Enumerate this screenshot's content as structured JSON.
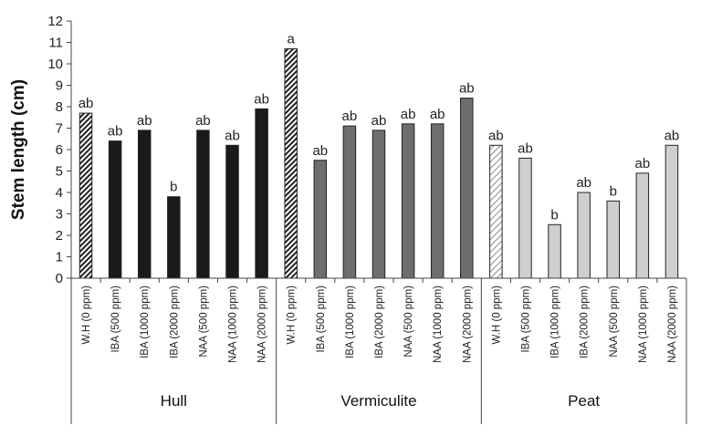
{
  "chart_data": {
    "type": "bar",
    "ylabel": "Stem length (cm)",
    "ylim": [
      0,
      12
    ],
    "yticks": [
      0,
      1,
      2,
      3,
      4,
      5,
      6,
      7,
      8,
      9,
      10,
      11,
      12
    ],
    "grid": false,
    "categories": [
      "W.H (0 ppm)",
      "IBA (500 ppm)",
      "IBA (1000 ppm)",
      "IBA (2000 ppm)",
      "NAA (500 ppm)",
      "NAA (1000 ppm)",
      "NAA (2000 ppm)"
    ],
    "groups": [
      {
        "name": "Hull",
        "values": [
          7.7,
          6.4,
          6.9,
          3.8,
          6.9,
          6.2,
          7.9
        ],
        "labels": [
          "ab",
          "ab",
          "ab",
          "b",
          "ab",
          "ab",
          "ab"
        ],
        "color": "#1a1a1a",
        "control_pattern": "dense-hatch"
      },
      {
        "name": "Vermiculite",
        "values": [
          10.7,
          5.5,
          7.1,
          6.9,
          7.2,
          7.2,
          8.4
        ],
        "labels": [
          "a",
          "ab",
          "ab",
          "ab",
          "ab",
          "ab",
          "ab"
        ],
        "color": "#6e6e6e",
        "control_pattern": "dense-hatch"
      },
      {
        "name": "Peat",
        "values": [
          6.2,
          5.6,
          2.5,
          4.0,
          3.6,
          4.9,
          6.2
        ],
        "labels": [
          "ab",
          "ab",
          "b",
          "ab",
          "b",
          "ab",
          "ab"
        ],
        "color": "#cfcfcf",
        "control_pattern": "light-hatch"
      }
    ]
  }
}
